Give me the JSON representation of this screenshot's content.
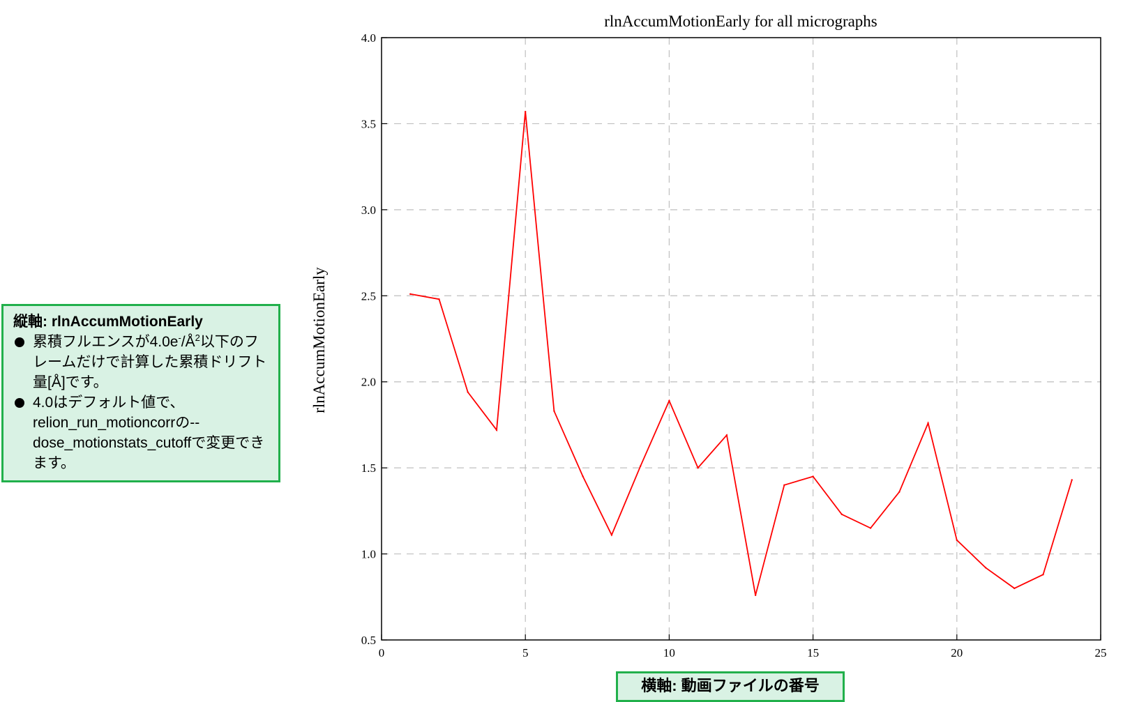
{
  "chart_data": {
    "type": "line",
    "title": "rlnAccumMotionEarly for all micrographs",
    "xlabel": "",
    "ylabel": "rlnAccumMotionEarly",
    "xlim": [
      0,
      25
    ],
    "ylim": [
      0.5,
      4.0
    ],
    "xticks": [
      "0",
      "5",
      "10",
      "15",
      "20",
      "25"
    ],
    "yticks": [
      "0.5",
      "1.0",
      "1.5",
      "2.0",
      "2.5",
      "3.0",
      "3.5",
      "4.0"
    ],
    "grid": true,
    "series": [
      {
        "color": "#ff0000",
        "x": [
          1,
          2,
          3,
          4,
          5,
          6,
          7,
          8,
          9,
          10,
          11,
          12,
          13,
          14,
          15,
          16,
          17,
          18,
          19,
          20,
          21,
          22,
          23,
          24
        ],
        "y": [
          2.51,
          2.48,
          1.94,
          1.72,
          3.57,
          1.83,
          1.45,
          1.11,
          1.51,
          1.89,
          1.5,
          1.69,
          0.76,
          1.4,
          1.45,
          1.23,
          1.15,
          1.36,
          1.76,
          1.08,
          0.92,
          0.8,
          0.88,
          1.43
        ]
      }
    ]
  },
  "annotations": {
    "yaxis_note": {
      "title": "縦軸: rlnAccumMotionEarly",
      "bullet1_pre": "累積フルエンスが4.0e",
      "bullet1_sup1": "-",
      "bullet1_mid": "/Å",
      "bullet1_sup2": "2",
      "bullet1_post": "以下のフレームだけで計算した累積ドリフト量[Å]です。",
      "bullet2": "4.0はデフォルト値で、relion_run_motioncorrの--dose_motionstats_cutoffで変更できます。"
    },
    "xaxis_note": "横軸: 動画ファイルの番号"
  },
  "colors": {
    "line": "#ff0000",
    "grid": "#bfbfbf",
    "note_bg": "#d9f2e4",
    "note_border": "#21b04b"
  }
}
